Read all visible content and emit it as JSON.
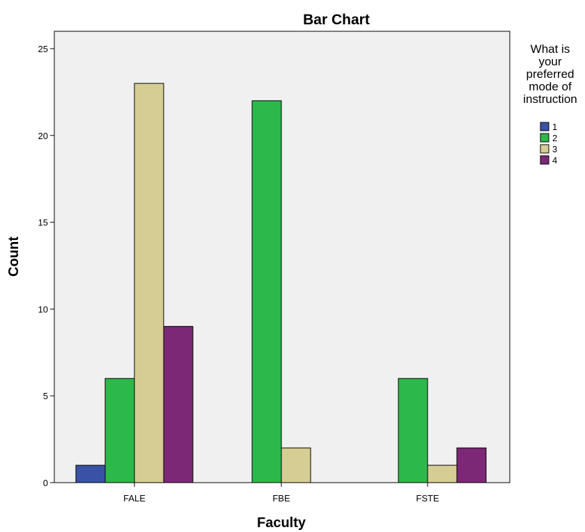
{
  "chart_data": {
    "type": "bar",
    "title": "Bar Chart",
    "xlabel": "Faculty",
    "ylabel": "Count",
    "categories": [
      "FALE",
      "FBE",
      "FSTE"
    ],
    "ylim": [
      0,
      26
    ],
    "yticks": [
      0,
      5,
      10,
      15,
      20,
      25
    ],
    "grid": false,
    "legend": {
      "title_lines": [
        "What is",
        "your",
        "preferred",
        "mode of",
        "instruction"
      ],
      "placement": "right"
    },
    "series": [
      {
        "name": "1",
        "color": "#3a52a5",
        "values": [
          1,
          null,
          null
        ]
      },
      {
        "name": "2",
        "color": "#2db84a",
        "values": [
          6,
          22,
          6
        ]
      },
      {
        "name": "3",
        "color": "#d6cd94",
        "values": [
          23,
          2,
          1
        ]
      },
      {
        "name": "4",
        "color": "#7d2876",
        "values": [
          9,
          null,
          2
        ]
      }
    ],
    "plot_background": "#f0f0f0"
  }
}
